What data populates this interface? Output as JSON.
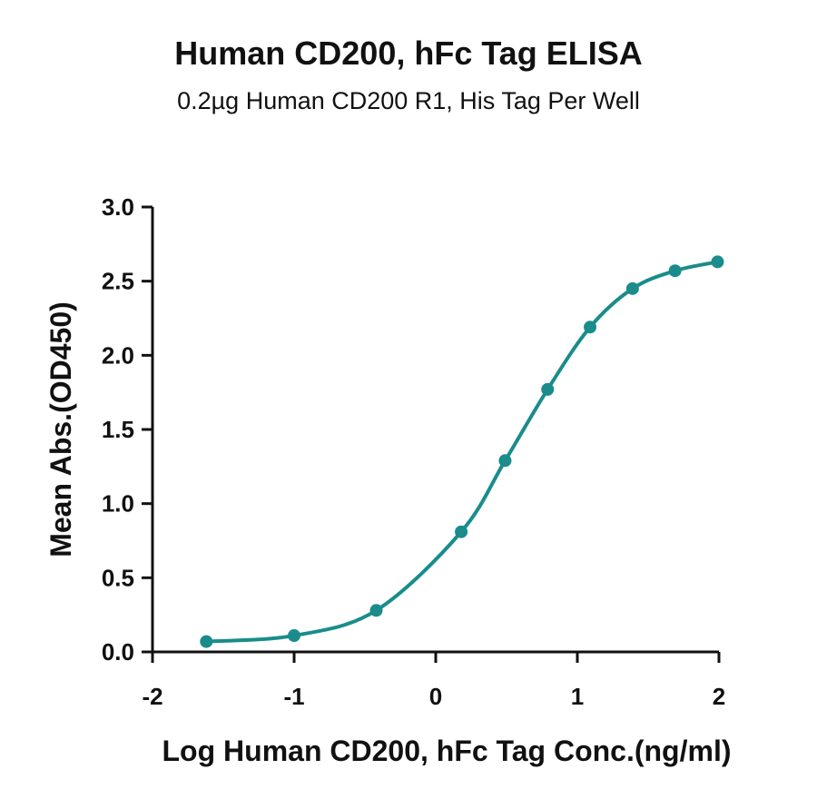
{
  "title": "Human CD200, hFc Tag ELISA",
  "subtitle": "0.2µg Human CD200 R1, His Tag Per Well",
  "chart_data": {
    "type": "line",
    "xlabel": "Log Human CD200, hFc Tag Conc.(ng/ml)",
    "ylabel": "Mean Abs.(OD450)",
    "xlim": [
      -2,
      2
    ],
    "ylim": [
      0,
      3.0
    ],
    "xticks": [
      -2,
      -1,
      0,
      1,
      2
    ],
    "xtick_labels": [
      "-2",
      "-1",
      "0",
      "1",
      "2"
    ],
    "yticks": [
      0,
      0.5,
      1.0,
      1.5,
      2.0,
      2.5,
      3.0
    ],
    "ytick_labels": [
      "0.0",
      "0.5",
      "1.0",
      "1.5",
      "2.0",
      "2.5",
      "3.0"
    ],
    "grid": false,
    "series": [
      {
        "color": "#1a8c8c",
        "x": [
          -1.62,
          -1.0,
          -0.42,
          0.18,
          0.49,
          0.79,
          1.09,
          1.39,
          1.69,
          1.99
        ],
        "y": [
          0.07,
          0.11,
          0.28,
          0.81,
          1.29,
          1.77,
          2.19,
          2.45,
          2.57,
          2.63
        ],
        "curve": "4PL fit"
      }
    ]
  }
}
